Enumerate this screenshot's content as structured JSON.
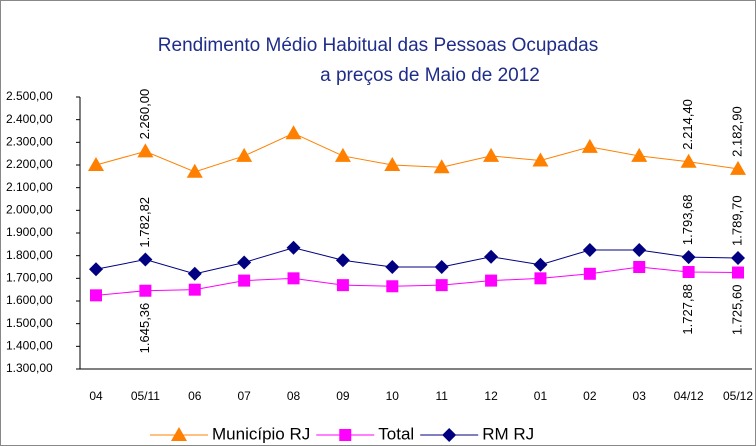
{
  "chart_data": {
    "type": "line",
    "title": [
      "Rendimento Médio Habitual das Pessoas Ocupadas",
      "a preços de Maio de 2012"
    ],
    "categories": [
      "04",
      "05/11",
      "06",
      "07",
      "08",
      "09",
      "10",
      "11",
      "12",
      "01",
      "02",
      "03",
      "04/12",
      "05/12"
    ],
    "ylim": [
      1300,
      2500
    ],
    "yticks": [
      {
        "value": 1300,
        "label": "1.300,00"
      },
      {
        "value": 1400,
        "label": "1.400,00"
      },
      {
        "value": 1500,
        "label": "1.500,00"
      },
      {
        "value": 1600,
        "label": "1.600,00"
      },
      {
        "value": 1700,
        "label": "1.700,00"
      },
      {
        "value": 1800,
        "label": "1.800,00"
      },
      {
        "value": 1900,
        "label": "1.900,00"
      },
      {
        "value": 2000,
        "label": "2.000,00"
      },
      {
        "value": 2100,
        "label": "2.100,00"
      },
      {
        "value": 2200,
        "label": "2.200,00"
      },
      {
        "value": 2300,
        "label": "2.300,00"
      },
      {
        "value": 2400,
        "label": "2.400,00"
      },
      {
        "value": 2500,
        "label": "2.500,00"
      }
    ],
    "series": [
      {
        "name": "Município RJ",
        "color": "#ff8000",
        "marker": "triangle",
        "label_side": "above",
        "values": [
          2200,
          2260,
          2170,
          2240,
          2340,
          2240,
          2200,
          2190,
          2240,
          2220,
          2280,
          2240,
          2214.4,
          2182.9
        ],
        "value_labels": [
          null,
          "2.260,00",
          null,
          null,
          null,
          null,
          null,
          null,
          null,
          null,
          null,
          null,
          "2.214,40",
          "2.182,90"
        ]
      },
      {
        "name": "Total",
        "color": "#ff00ff",
        "marker": "square",
        "label_side": "below",
        "values": [
          1625,
          1645.36,
          1650,
          1690,
          1700,
          1670,
          1665,
          1670,
          1690,
          1700,
          1720,
          1750,
          1727.88,
          1725.6
        ],
        "value_labels": [
          null,
          "1.645,36",
          null,
          null,
          null,
          null,
          null,
          null,
          null,
          null,
          null,
          null,
          "1.727,88",
          "1.725,60"
        ]
      },
      {
        "name": "RM RJ",
        "color": "#000080",
        "marker": "diamond",
        "label_side": "above",
        "values": [
          1740,
          1782.82,
          1720,
          1770,
          1835,
          1780,
          1750,
          1750,
          1795,
          1760,
          1825,
          1825,
          1793.68,
          1789.7
        ],
        "value_labels": [
          null,
          "1.782,82",
          null,
          null,
          null,
          null,
          null,
          null,
          null,
          null,
          null,
          null,
          "1.793,68",
          "1.789,70"
        ]
      }
    ]
  }
}
